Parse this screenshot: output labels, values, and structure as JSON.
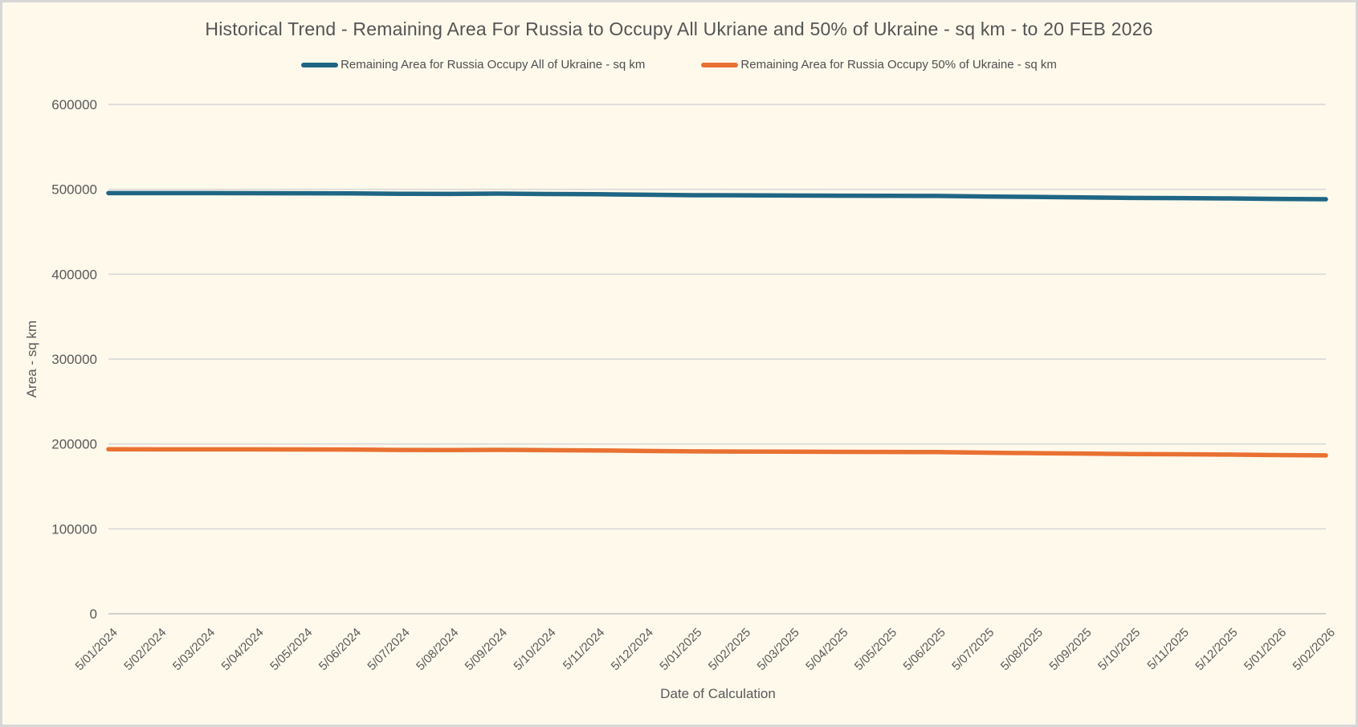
{
  "colors": {
    "background": "#FFF9EC",
    "frame_border": "#D7D7D7",
    "grid": "#D9D9D9",
    "axis": "#C9C9C9",
    "title_text": "#545454",
    "label_text": "#595959"
  },
  "chart_data": {
    "type": "line",
    "title": "Historical Trend - Remaining Area For Russia to Occupy All Ukriane and 50% of Ukraine - sq km - to 20 FEB 2026",
    "xlabel": "Date of Calculation",
    "ylabel": "Area - sq km",
    "ylim": [
      0,
      600000
    ],
    "yticks": [
      0,
      100000,
      200000,
      300000,
      400000,
      500000,
      600000
    ],
    "grid": true,
    "legend_position": "top",
    "categories": [
      "5/01/2024",
      "5/02/2024",
      "5/03/2024",
      "5/04/2024",
      "5/05/2024",
      "5/06/2024",
      "5/07/2024",
      "5/08/2024",
      "5/09/2024",
      "5/10/2024",
      "5/11/2024",
      "5/12/2024",
      "5/01/2025",
      "5/02/2025",
      "5/03/2025",
      "5/04/2025",
      "5/05/2025",
      "5/06/2025",
      "5/07/2025",
      "5/08/2025",
      "5/09/2025",
      "5/10/2025",
      "5/11/2025",
      "5/12/2025",
      "5/01/2026",
      "5/02/2026"
    ],
    "series": [
      {
        "key": "all-of-ukraine",
        "name": "Remaining Area for Russia Occupy All of Ukraine - sq km",
        "color": "#1F6684",
        "values": [
          495600,
          495500,
          495500,
          495400,
          495300,
          495200,
          494700,
          494600,
          494900,
          494500,
          494200,
          493600,
          493100,
          492900,
          492700,
          492500,
          492400,
          492200,
          491500,
          491000,
          490500,
          489900,
          489600,
          489300,
          488700,
          488300
        ]
      },
      {
        "key": "50-percent-of-ukraine",
        "name": "Remaining Area for Russia Occupy 50% of Ukraine - sq km",
        "color": "#E97132",
        "values": [
          193800,
          193700,
          193700,
          193600,
          193500,
          193400,
          192900,
          192800,
          193100,
          192700,
          192400,
          191800,
          191300,
          191100,
          190900,
          190700,
          190600,
          190400,
          189700,
          189200,
          188700,
          188100,
          187800,
          187500,
          186900,
          186500
        ]
      }
    ]
  }
}
